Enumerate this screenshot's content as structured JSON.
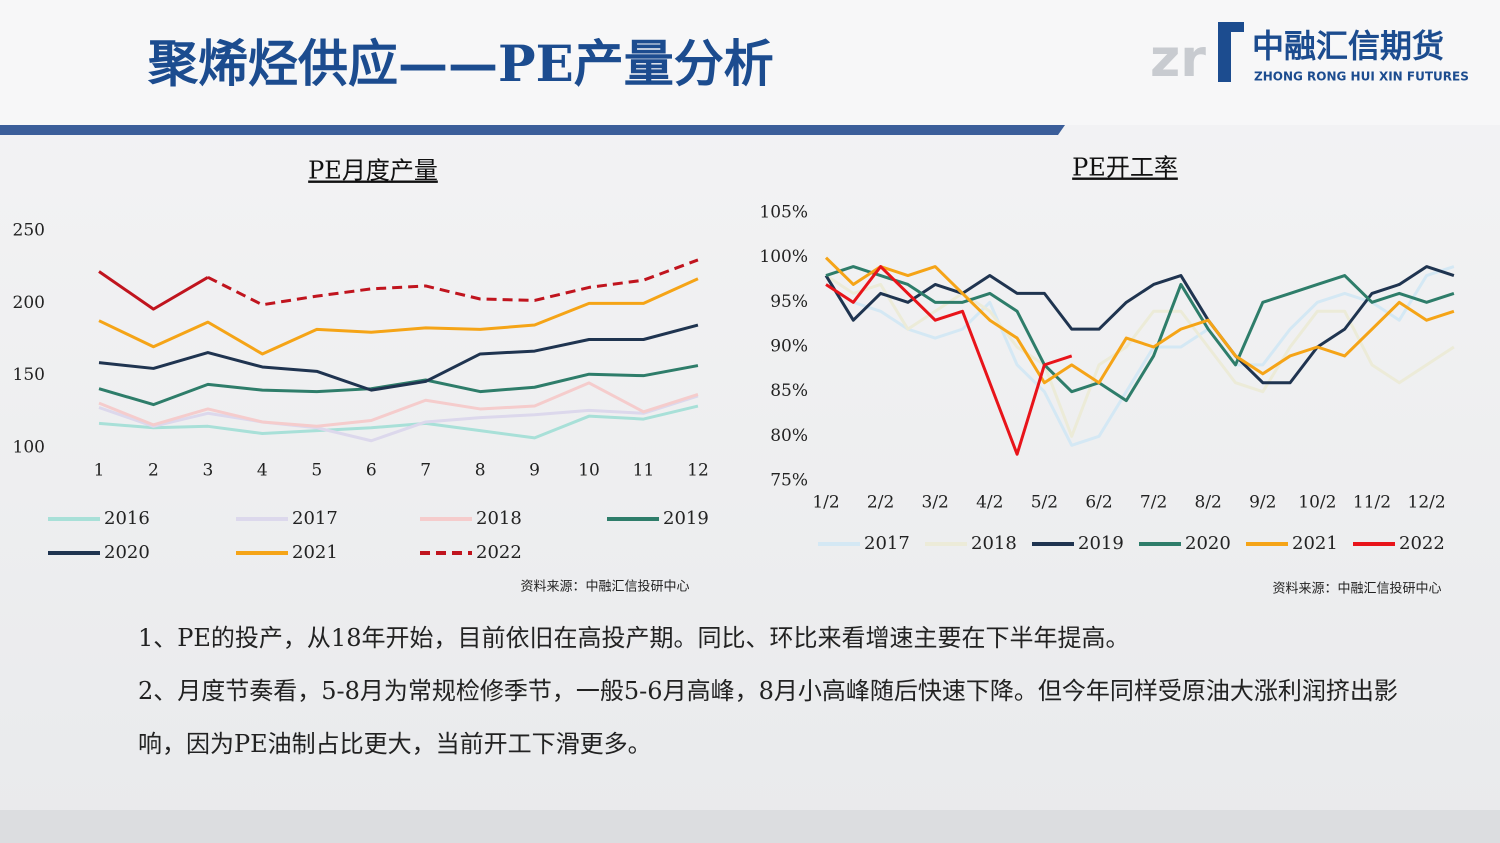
{
  "slide": {
    "title": "聚烯烃供应——PE产量分析",
    "logo_cn": "中融汇信期货",
    "logo_en": "ZHONG RONG HUI XIN FUTURES",
    "bullets": [
      "1、PE的投产，从18年开始，目前依旧在高投产期。同比、环比来看增速主要在下半年提高。",
      "2、月度节奏看，5-8月为常规检修季节，一般5-6月高峰，8月小高峰随后快速下降。但今年同样受原油大涨利润挤出影响，因为PE油制占比更大，当前开工下滑更多。"
    ]
  },
  "chart_data": [
    {
      "type": "line",
      "title": "PE月度产量",
      "source": "资料来源：中融汇信投研中心",
      "categories": [
        "1",
        "2",
        "3",
        "4",
        "5",
        "6",
        "7",
        "8",
        "9",
        "10",
        "11",
        "12"
      ],
      "ylim": [
        100,
        250
      ],
      "yticks": [
        100,
        150,
        200,
        250
      ],
      "series": [
        {
          "name": "2016",
          "color": "#a8e0d8",
          "values": [
            117,
            114,
            115,
            110,
            112,
            114,
            117,
            112,
            107,
            122,
            120,
            129
          ]
        },
        {
          "name": "2017",
          "color": "#dcd8ec",
          "values": [
            128,
            115,
            124,
            118,
            114,
            105,
            118,
            121,
            123,
            126,
            124,
            136
          ]
        },
        {
          "name": "2018",
          "color": "#f5cccc",
          "values": [
            131,
            116,
            127,
            118,
            115,
            119,
            133,
            127,
            129,
            145,
            125,
            137
          ]
        },
        {
          "name": "2019",
          "color": "#2e7d6a",
          "values": [
            141,
            130,
            144,
            140,
            139,
            141,
            147,
            139,
            142,
            151,
            150,
            157
          ]
        },
        {
          "name": "2020",
          "color": "#1f3450",
          "values": [
            159,
            155,
            166,
            156,
            153,
            140,
            146,
            165,
            167,
            175,
            175,
            185
          ]
        },
        {
          "name": "2021",
          "color": "#f5a417",
          "values": [
            188,
            170,
            187,
            165,
            182,
            180,
            183,
            182,
            185,
            200,
            200,
            217
          ]
        },
        {
          "name": "2022",
          "color": "#c0141e",
          "dashed_from": 2,
          "values": [
            222,
            196,
            218,
            199,
            205,
            210,
            212,
            203,
            202,
            211,
            216,
            230
          ]
        }
      ]
    },
    {
      "type": "line",
      "title": "PE开工率",
      "source": "资料来源：中融汇信投研中心",
      "categories": [
        "1/2",
        null,
        "2/2",
        null,
        "3/2",
        null,
        "4/2",
        null,
        "5/2",
        null,
        "6/2",
        null,
        "7/2",
        null,
        "8/2",
        null,
        "9/2",
        null,
        "10/2",
        null,
        "11/2",
        null,
        "12/2",
        null
      ],
      "ylim": [
        75,
        105
      ],
      "yticks": [
        {
          "value": 75,
          "label": "75%"
        },
        {
          "value": 80,
          "label": "80%"
        },
        {
          "value": 85,
          "label": "85%"
        },
        {
          "value": 90,
          "label": "90%"
        },
        {
          "value": 95,
          "label": "95%"
        },
        {
          "value": 100,
          "label": "100%"
        },
        {
          "value": 105,
          "label": "105%"
        }
      ],
      "series": [
        {
          "name": "2017",
          "color": "#d4e8f4",
          "values": [
            97,
            95,
            94,
            92,
            91,
            92,
            95,
            88,
            85,
            79,
            80,
            85,
            90,
            90,
            92,
            88,
            88,
            92,
            95,
            96,
            95,
            93,
            98,
            99
          ]
        },
        {
          "name": "2018",
          "color": "#ecebd8",
          "values": [
            98,
            96,
            97,
            92,
            94,
            96,
            94,
            90,
            88,
            80,
            88,
            90,
            94,
            94,
            90,
            86,
            85,
            90,
            94,
            94,
            88,
            86,
            88,
            90
          ]
        },
        {
          "name": "2019",
          "color": "#1f3450",
          "values": [
            98,
            93,
            96,
            95,
            97,
            96,
            98,
            96,
            96,
            92,
            92,
            95,
            97,
            98,
            93,
            89,
            86,
            86,
            90,
            92,
            96,
            97,
            99,
            98
          ]
        },
        {
          "name": "2020",
          "color": "#2e7d6a",
          "values": [
            98,
            99,
            98,
            97,
            95,
            95,
            96,
            94,
            88,
            85,
            86,
            84,
            89,
            97,
            92,
            88,
            95,
            96,
            97,
            98,
            95,
            96,
            95,
            96
          ]
        },
        {
          "name": "2021",
          "color": "#f5a417",
          "values": [
            100,
            97,
            99,
            98,
            99,
            96,
            93,
            91,
            86,
            88,
            86,
            91,
            90,
            92,
            93,
            89,
            87,
            89,
            90,
            89,
            92,
            95,
            93,
            94
          ]
        },
        {
          "name": "2022",
          "color": "#e8141a",
          "values": [
            97,
            95,
            99,
            96,
            93,
            94,
            86,
            78,
            88,
            89,
            null,
            null,
            null,
            null,
            null,
            null,
            null,
            null,
            null,
            null,
            null,
            null,
            null,
            null
          ]
        }
      ]
    }
  ]
}
